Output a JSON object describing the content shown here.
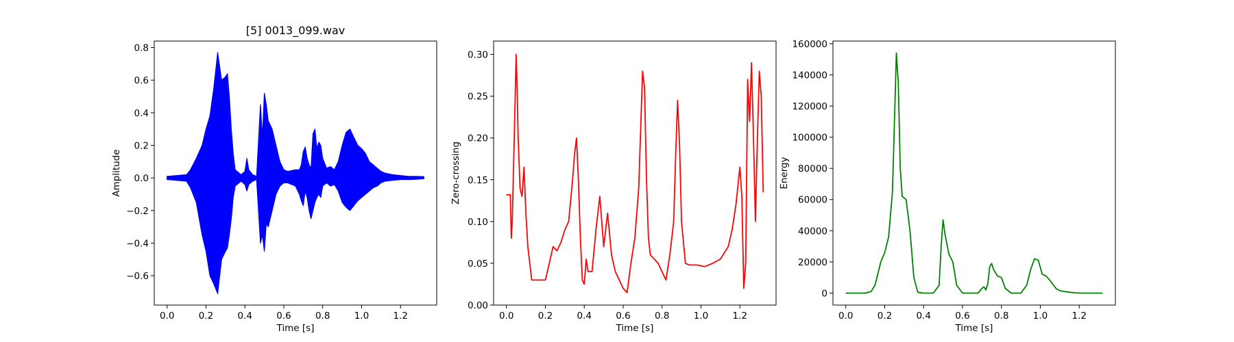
{
  "figure": {
    "background": "#ffffff"
  },
  "chart_data": [
    {
      "type": "line",
      "title": "[5] 0013_099.wav",
      "xlabel": "Time [s]",
      "ylabel": "Amplitude",
      "xlim": [
        -0.066,
        1.386
      ],
      "ylim": [
        -0.78,
        0.84
      ],
      "xticks": [
        0,
        0.2,
        0.4,
        0.6,
        0.8,
        1.0,
        1.2
      ],
      "xtick_labels": [
        "0.0",
        "0.2",
        "0.4",
        "0.6",
        "0.8",
        "1.0",
        "1.2"
      ],
      "yticks": [
        -0.6,
        -0.4,
        -0.2,
        0.0,
        0.2,
        0.4,
        0.6,
        0.8
      ],
      "ytick_labels": [
        "−0.6",
        "−0.4",
        "−0.2",
        "0.0",
        "0.2",
        "0.4",
        "0.6",
        "0.8"
      ],
      "grid": false,
      "series": [
        {
          "color": "#0000ff",
          "rendering": "envelope",
          "x": [
            0.0,
            0.1,
            0.12,
            0.15,
            0.18,
            0.2,
            0.22,
            0.24,
            0.26,
            0.28,
            0.3,
            0.31,
            0.32,
            0.33,
            0.34,
            0.35,
            0.36,
            0.38,
            0.4,
            0.41,
            0.42,
            0.44,
            0.46,
            0.48,
            0.49,
            0.5,
            0.51,
            0.52,
            0.54,
            0.56,
            0.58,
            0.6,
            0.62,
            0.66,
            0.68,
            0.69,
            0.7,
            0.71,
            0.72,
            0.73,
            0.74,
            0.75,
            0.76,
            0.77,
            0.78,
            0.79,
            0.8,
            0.82,
            0.84,
            0.86,
            0.88,
            0.9,
            0.92,
            0.94,
            0.96,
            0.98,
            1.0,
            1.02,
            1.04,
            1.06,
            1.08,
            1.1,
            1.12,
            1.16,
            1.2,
            1.24,
            1.28,
            1.32
          ],
          "upper": [
            0.01,
            0.02,
            0.05,
            0.12,
            0.2,
            0.3,
            0.38,
            0.55,
            0.77,
            0.6,
            0.62,
            0.64,
            0.5,
            0.3,
            0.15,
            0.05,
            0.04,
            0.02,
            0.04,
            0.12,
            0.05,
            0.02,
            0.01,
            0.45,
            0.25,
            0.52,
            0.45,
            0.35,
            0.3,
            0.2,
            0.1,
            0.05,
            0.04,
            0.05,
            0.05,
            0.08,
            0.16,
            0.19,
            0.12,
            0.08,
            0.06,
            0.27,
            0.3,
            0.18,
            0.22,
            0.2,
            0.12,
            0.06,
            0.07,
            0.05,
            0.1,
            0.2,
            0.28,
            0.3,
            0.25,
            0.2,
            0.18,
            0.15,
            0.1,
            0.08,
            0.06,
            0.04,
            0.03,
            0.02,
            0.015,
            0.01,
            0.01,
            0.008
          ],
          "lower": [
            -0.01,
            -0.02,
            -0.06,
            -0.15,
            -0.35,
            -0.45,
            -0.6,
            -0.65,
            -0.71,
            -0.5,
            -0.45,
            -0.43,
            -0.35,
            -0.25,
            -0.12,
            -0.05,
            -0.04,
            -0.02,
            -0.04,
            -0.08,
            -0.04,
            -0.02,
            -0.01,
            -0.4,
            -0.35,
            -0.45,
            -0.28,
            -0.3,
            -0.2,
            -0.1,
            -0.05,
            -0.03,
            -0.03,
            -0.05,
            -0.1,
            -0.14,
            -0.17,
            -0.08,
            -0.12,
            -0.2,
            -0.25,
            -0.2,
            -0.15,
            -0.12,
            -0.1,
            -0.12,
            -0.05,
            -0.03,
            -0.05,
            -0.04,
            -0.08,
            -0.15,
            -0.18,
            -0.2,
            -0.17,
            -0.14,
            -0.12,
            -0.1,
            -0.08,
            -0.06,
            -0.05,
            -0.03,
            -0.02,
            -0.015,
            -0.01,
            -0.01,
            -0.008,
            -0.005
          ]
        }
      ]
    },
    {
      "type": "line",
      "title": "",
      "xlabel": "Time [s]",
      "ylabel": "Zero-crossing",
      "xlim": [
        -0.066,
        1.386
      ],
      "ylim": [
        0.0,
        0.316
      ],
      "xticks": [
        0,
        0.2,
        0.4,
        0.6,
        0.8,
        1.0,
        1.2
      ],
      "xtick_labels": [
        "0.0",
        "0.2",
        "0.4",
        "0.6",
        "0.8",
        "1.0",
        "1.2"
      ],
      "yticks": [
        0.0,
        0.05,
        0.1,
        0.15,
        0.2,
        0.25,
        0.3
      ],
      "ytick_labels": [
        "0.00",
        "0.05",
        "0.10",
        "0.15",
        "0.20",
        "0.25",
        "0.30"
      ],
      "grid": false,
      "series": [
        {
          "color": "#ff0000",
          "x": [
            0.0,
            0.02,
            0.025,
            0.03,
            0.04,
            0.05,
            0.055,
            0.06,
            0.07,
            0.08,
            0.09,
            0.1,
            0.11,
            0.12,
            0.13,
            0.15,
            0.18,
            0.2,
            0.22,
            0.24,
            0.26,
            0.28,
            0.3,
            0.32,
            0.34,
            0.35,
            0.36,
            0.37,
            0.38,
            0.39,
            0.4,
            0.41,
            0.42,
            0.44,
            0.46,
            0.48,
            0.5,
            0.52,
            0.54,
            0.56,
            0.58,
            0.6,
            0.62,
            0.64,
            0.66,
            0.68,
            0.7,
            0.71,
            0.72,
            0.73,
            0.74,
            0.76,
            0.78,
            0.8,
            0.82,
            0.84,
            0.86,
            0.87,
            0.88,
            0.89,
            0.9,
            0.92,
            0.94,
            0.98,
            1.02,
            1.06,
            1.1,
            1.14,
            1.16,
            1.18,
            1.2,
            1.21,
            1.22,
            1.23,
            1.24,
            1.25,
            1.26,
            1.27,
            1.28,
            1.29,
            1.3,
            1.31,
            1.32
          ],
          "values": [
            0.132,
            0.132,
            0.08,
            0.1,
            0.2,
            0.3,
            0.26,
            0.2,
            0.14,
            0.13,
            0.165,
            0.11,
            0.07,
            0.05,
            0.03,
            0.03,
            0.03,
            0.03,
            0.05,
            0.07,
            0.065,
            0.075,
            0.09,
            0.1,
            0.15,
            0.18,
            0.2,
            0.15,
            0.08,
            0.03,
            0.025,
            0.055,
            0.04,
            0.04,
            0.09,
            0.13,
            0.07,
            0.11,
            0.06,
            0.04,
            0.03,
            0.02,
            0.015,
            0.05,
            0.08,
            0.14,
            0.28,
            0.26,
            0.15,
            0.08,
            0.06,
            0.055,
            0.05,
            0.04,
            0.03,
            0.06,
            0.1,
            0.18,
            0.245,
            0.19,
            0.1,
            0.05,
            0.048,
            0.048,
            0.046,
            0.05,
            0.055,
            0.07,
            0.09,
            0.12,
            0.165,
            0.13,
            0.02,
            0.05,
            0.27,
            0.22,
            0.29,
            0.2,
            0.1,
            0.2,
            0.28,
            0.25,
            0.135
          ]
        }
      ]
    },
    {
      "type": "line",
      "title": "",
      "xlabel": "Time [s]",
      "ylabel": "Energy",
      "xlim": [
        -0.066,
        1.386
      ],
      "ylim": [
        -7700,
        161700
      ],
      "xticks": [
        0,
        0.2,
        0.4,
        0.6,
        0.8,
        1.0,
        1.2
      ],
      "xtick_labels": [
        "0.0",
        "0.2",
        "0.4",
        "0.6",
        "0.8",
        "1.0",
        "1.2"
      ],
      "yticks": [
        0,
        20000,
        40000,
        60000,
        80000,
        100000,
        120000,
        140000,
        160000
      ],
      "ytick_labels": [
        "0",
        "20000",
        "40000",
        "60000",
        "80000",
        "100000",
        "120000",
        "140000",
        "160000"
      ],
      "grid": false,
      "series": [
        {
          "color": "#008000",
          "x": [
            0.0,
            0.1,
            0.13,
            0.15,
            0.18,
            0.2,
            0.22,
            0.24,
            0.25,
            0.26,
            0.27,
            0.28,
            0.29,
            0.31,
            0.33,
            0.35,
            0.37,
            0.4,
            0.45,
            0.48,
            0.49,
            0.5,
            0.51,
            0.53,
            0.55,
            0.57,
            0.6,
            0.68,
            0.7,
            0.71,
            0.72,
            0.73,
            0.74,
            0.75,
            0.76,
            0.78,
            0.8,
            0.82,
            0.85,
            0.9,
            0.93,
            0.95,
            0.97,
            0.99,
            1.01,
            1.03,
            1.05,
            1.08,
            1.1,
            1.15,
            1.2,
            1.32
          ],
          "values": [
            0,
            0,
            1000,
            5000,
            20000,
            26000,
            36000,
            65000,
            110000,
            154000,
            135000,
            80000,
            62000,
            60000,
            40000,
            10000,
            500,
            0,
            0,
            5000,
            30000,
            47000,
            38000,
            25000,
            20000,
            5000,
            0,
            0,
            3000,
            4000,
            2000,
            6000,
            17000,
            19000,
            15000,
            11000,
            10000,
            3000,
            0,
            0,
            5000,
            15000,
            22000,
            21000,
            12000,
            11000,
            8000,
            3000,
            1500,
            500,
            0,
            0
          ]
        }
      ]
    }
  ]
}
